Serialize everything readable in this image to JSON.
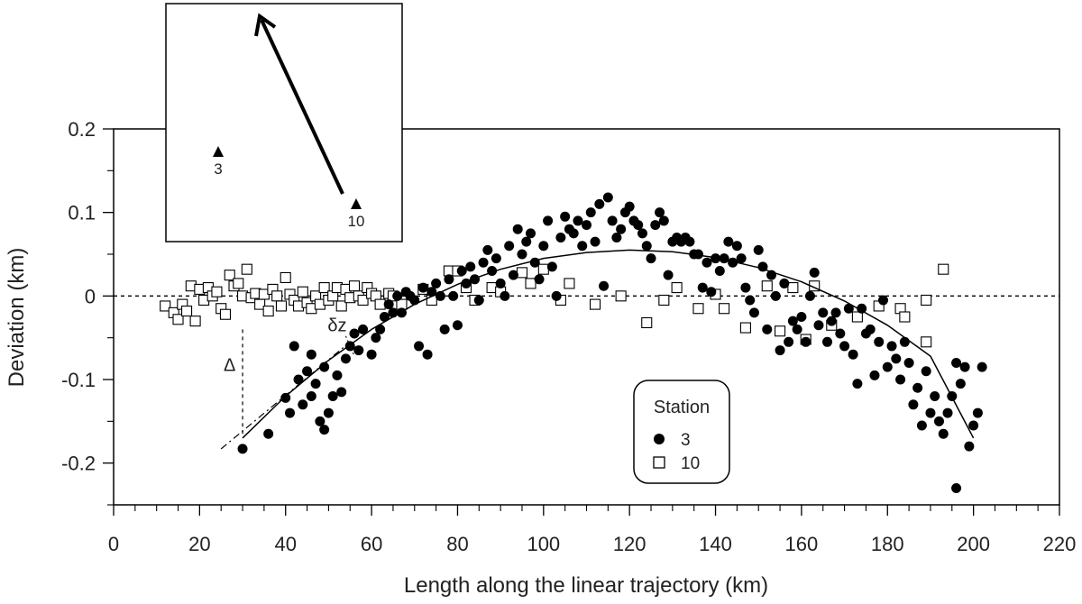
{
  "chart_data": {
    "type": "scatter",
    "xlabel": "Length along the linear trajectory (km)",
    "ylabel": "Deviation (km)",
    "xlim": [
      0,
      220
    ],
    "ylim": [
      -0.25,
      0.2
    ],
    "xticks": [
      0,
      20,
      40,
      60,
      80,
      100,
      120,
      140,
      160,
      180,
      200,
      220
    ],
    "yticks": [
      0.2,
      0.1,
      0,
      -0.1,
      -0.2
    ],
    "ytick_labels": [
      "0.2",
      "0.1",
      "0",
      "-0.1",
      "-0.2"
    ],
    "grid": false,
    "zero_line": "dashed",
    "legend": {
      "title": "Station",
      "position": "bottom-right-center"
    },
    "series": [
      {
        "name": "3",
        "marker": "filled-circle",
        "color": "#000000",
        "points": [
          [
            30,
            -0.183
          ],
          [
            36,
            -0.165
          ],
          [
            40,
            -0.122
          ],
          [
            41,
            -0.14
          ],
          [
            42,
            -0.06
          ],
          [
            43,
            -0.1
          ],
          [
            44,
            -0.13
          ],
          [
            45,
            -0.09
          ],
          [
            46,
            -0.12
          ],
          [
            46,
            -0.07
          ],
          [
            47,
            -0.105
          ],
          [
            48,
            -0.15
          ],
          [
            49,
            -0.16
          ],
          [
            49,
            -0.085
          ],
          [
            50,
            -0.14
          ],
          [
            51,
            -0.12
          ],
          [
            52,
            -0.095
          ],
          [
            53,
            -0.115
          ],
          [
            54,
            -0.075
          ],
          [
            55,
            -0.06
          ],
          [
            56,
            -0.045
          ],
          [
            57,
            -0.065
          ],
          [
            58,
            -0.04
          ],
          [
            60,
            -0.07
          ],
          [
            61,
            -0.05
          ],
          [
            62,
            -0.04
          ],
          [
            63,
            -0.025
          ],
          [
            64,
            -0.01
          ],
          [
            65,
            -0.02
          ],
          [
            66,
            0.0
          ],
          [
            67,
            -0.02
          ],
          [
            68,
            0.005
          ],
          [
            69,
            0.0
          ],
          [
            70,
            -0.005
          ],
          [
            71,
            -0.06
          ],
          [
            72,
            0.01
          ],
          [
            73,
            -0.07
          ],
          [
            74,
            0.005
          ],
          [
            75,
            0.015
          ],
          [
            76,
            0.0
          ],
          [
            77,
            -0.04
          ],
          [
            78,
            0.02
          ],
          [
            79,
            0.0
          ],
          [
            80,
            -0.035
          ],
          [
            81,
            0.03
          ],
          [
            82,
            0.015
          ],
          [
            83,
            0.035
          ],
          [
            84,
            0.02
          ],
          [
            85,
            -0.005
          ],
          [
            86,
            0.04
          ],
          [
            87,
            0.055
          ],
          [
            88,
            0.03
          ],
          [
            89,
            0.045
          ],
          [
            90,
            0.015
          ],
          [
            91,
            0.0
          ],
          [
            92,
            0.06
          ],
          [
            93,
            0.025
          ],
          [
            94,
            0.08
          ],
          [
            95,
            0.05
          ],
          [
            96,
            0.065
          ],
          [
            97,
            0.075
          ],
          [
            98,
            0.04
          ],
          [
            99,
            0.02
          ],
          [
            100,
            0.06
          ],
          [
            101,
            0.09
          ],
          [
            102,
            0.035
          ],
          [
            103,
            0.0
          ],
          [
            104,
            0.07
          ],
          [
            105,
            0.095
          ],
          [
            106,
            0.08
          ],
          [
            107,
            0.075
          ],
          [
            108,
            0.09
          ],
          [
            109,
            0.06
          ],
          [
            110,
            0.085
          ],
          [
            111,
            0.1
          ],
          [
            112,
            0.065
          ],
          [
            113,
            0.11
          ],
          [
            114,
            0.012
          ],
          [
            115,
            0.118
          ],
          [
            116,
            0.09
          ],
          [
            117,
            0.07
          ],
          [
            118,
            0.08
          ],
          [
            119,
            0.1
          ],
          [
            120,
            0.107
          ],
          [
            121,
            0.09
          ],
          [
            122,
            0.085
          ],
          [
            123,
            0.075
          ],
          [
            124,
            0.06
          ],
          [
            125,
            0.045
          ],
          [
            126,
            0.085
          ],
          [
            127,
            0.1
          ],
          [
            128,
            0.09
          ],
          [
            129,
            0.025
          ],
          [
            130,
            0.065
          ],
          [
            131,
            0.07
          ],
          [
            132,
            0.065
          ],
          [
            133,
            0.07
          ],
          [
            134,
            0.065
          ],
          [
            135,
            0.05
          ],
          [
            136,
            0.05
          ],
          [
            137,
            0.01
          ],
          [
            138,
            0.04
          ],
          [
            139,
            0.005
          ],
          [
            140,
            0.045
          ],
          [
            141,
            0.03
          ],
          [
            142,
            0.045
          ],
          [
            143,
            0.065
          ],
          [
            144,
            0.04
          ],
          [
            145,
            0.06
          ],
          [
            146,
            0.045
          ],
          [
            147,
            0.01
          ],
          [
            148,
            -0.005
          ],
          [
            149,
            -0.02
          ],
          [
            150,
            0.055
          ],
          [
            151,
            0.035
          ],
          [
            152,
            -0.04
          ],
          [
            153,
            0.025
          ],
          [
            154,
            0.0
          ],
          [
            155,
            -0.065
          ],
          [
            156,
            0.015
          ],
          [
            157,
            -0.055
          ],
          [
            158,
            -0.03
          ],
          [
            159,
            -0.04
          ],
          [
            160,
            -0.025
          ],
          [
            161,
            -0.055
          ],
          [
            162,
            0.0
          ],
          [
            163,
            0.028
          ],
          [
            164,
            -0.035
          ],
          [
            165,
            -0.02
          ],
          [
            166,
            -0.055
          ],
          [
            167,
            -0.03
          ],
          [
            168,
            -0.02
          ],
          [
            169,
            -0.045
          ],
          [
            170,
            -0.06
          ],
          [
            171,
            -0.015
          ],
          [
            172,
            -0.07
          ],
          [
            173,
            -0.105
          ],
          [
            174,
            -0.015
          ],
          [
            175,
            -0.045
          ],
          [
            176,
            -0.04
          ],
          [
            177,
            -0.095
          ],
          [
            178,
            -0.055
          ],
          [
            179,
            -0.005
          ],
          [
            180,
            -0.085
          ],
          [
            181,
            -0.06
          ],
          [
            182,
            -0.075
          ],
          [
            183,
            -0.1
          ],
          [
            184,
            -0.055
          ],
          [
            185,
            -0.08
          ],
          [
            186,
            -0.13
          ],
          [
            187,
            -0.11
          ],
          [
            188,
            -0.155
          ],
          [
            189,
            -0.09
          ],
          [
            190,
            -0.14
          ],
          [
            191,
            -0.12
          ],
          [
            192,
            -0.15
          ],
          [
            193,
            -0.165
          ],
          [
            194,
            -0.14
          ],
          [
            195,
            -0.12
          ],
          [
            196,
            -0.08
          ],
          [
            196,
            -0.23
          ],
          [
            197,
            -0.105
          ],
          [
            198,
            -0.085
          ],
          [
            199,
            -0.18
          ],
          [
            200,
            -0.155
          ],
          [
            201,
            -0.14
          ],
          [
            202,
            -0.085
          ]
        ]
      },
      {
        "name": "10",
        "marker": "open-square",
        "color": "#000000",
        "points": [
          [
            12,
            -0.012
          ],
          [
            14,
            -0.02
          ],
          [
            15,
            -0.028
          ],
          [
            16,
            -0.01
          ],
          [
            17,
            -0.018
          ],
          [
            18,
            0.012
          ],
          [
            19,
            -0.03
          ],
          [
            20,
            0.008
          ],
          [
            21,
            -0.005
          ],
          [
            22,
            0.01
          ],
          [
            23,
            0.0
          ],
          [
            24,
            0.005
          ],
          [
            25,
            -0.015
          ],
          [
            26,
            -0.022
          ],
          [
            27,
            0.025
          ],
          [
            28,
            0.012
          ],
          [
            29,
            0.015
          ],
          [
            30,
            0.0
          ],
          [
            31,
            0.032
          ],
          [
            32,
            -0.002
          ],
          [
            33,
            0.003
          ],
          [
            34,
            -0.01
          ],
          [
            35,
            0.002
          ],
          [
            36,
            -0.018
          ],
          [
            37,
            0.008
          ],
          [
            38,
            0.0
          ],
          [
            39,
            -0.012
          ],
          [
            40,
            0.022
          ],
          [
            41,
            0.002
          ],
          [
            42,
            -0.005
          ],
          [
            43,
            -0.012
          ],
          [
            44,
            0.005
          ],
          [
            45,
            -0.008
          ],
          [
            46,
            -0.015
          ],
          [
            47,
            0.0
          ],
          [
            48,
            -0.01
          ],
          [
            49,
            0.01
          ],
          [
            50,
            -0.005
          ],
          [
            51,
            0.0
          ],
          [
            52,
            0.01
          ],
          [
            53,
            -0.012
          ],
          [
            54,
            0.008
          ],
          [
            55,
            -0.002
          ],
          [
            56,
            0.012
          ],
          [
            57,
            0.0
          ],
          [
            58,
            -0.005
          ],
          [
            59,
            0.01
          ],
          [
            60,
            0.003
          ],
          [
            61,
            0.0
          ],
          [
            62,
            -0.01
          ],
          [
            64,
            0.003
          ],
          [
            65,
            0.0
          ],
          [
            67,
            -0.01
          ],
          [
            72,
            0.008
          ],
          [
            74,
            -0.005
          ],
          [
            78,
            0.03
          ],
          [
            80,
            0.03
          ],
          [
            82,
            0.01
          ],
          [
            84,
            -0.005
          ],
          [
            88,
            0.01
          ],
          [
            90,
            0.005
          ],
          [
            95,
            0.028
          ],
          [
            97,
            0.015
          ],
          [
            100,
            0.032
          ],
          [
            104,
            -0.005
          ],
          [
            106,
            0.015
          ],
          [
            112,
            -0.01
          ],
          [
            118,
            0.0
          ],
          [
            124,
            -0.032
          ],
          [
            128,
            -0.005
          ],
          [
            131,
            0.01
          ],
          [
            136,
            -0.015
          ],
          [
            140,
            0.002
          ],
          [
            142,
            -0.015
          ],
          [
            147,
            -0.038
          ],
          [
            152,
            0.012
          ],
          [
            155,
            -0.042
          ],
          [
            158,
            0.01
          ],
          [
            161,
            -0.052
          ],
          [
            163,
            0.012
          ],
          [
            167,
            -0.035
          ],
          [
            173,
            -0.025
          ],
          [
            178,
            -0.012
          ],
          [
            183,
            -0.015
          ],
          [
            184,
            -0.025
          ],
          [
            189,
            -0.005
          ],
          [
            189,
            -0.055
          ],
          [
            193,
            0.032
          ]
        ]
      }
    ],
    "fit_curve": {
      "style": "solid",
      "points": [
        [
          30,
          -0.17
        ],
        [
          40,
          -0.12
        ],
        [
          50,
          -0.077
        ],
        [
          60,
          -0.04
        ],
        [
          70,
          -0.01
        ],
        [
          80,
          0.014
        ],
        [
          90,
          0.032
        ],
        [
          100,
          0.045
        ],
        [
          110,
          0.052
        ],
        [
          120,
          0.055
        ],
        [
          130,
          0.053
        ],
        [
          140,
          0.046
        ],
        [
          150,
          0.034
        ],
        [
          160,
          0.017
        ],
        [
          170,
          -0.006
        ],
        [
          180,
          -0.035
        ],
        [
          190,
          -0.072
        ],
        [
          200,
          -0.17
        ]
      ]
    },
    "tangent_line": {
      "style": "dash-dot",
      "points": [
        [
          25,
          -0.183
        ],
        [
          55,
          -0.055
        ]
      ]
    },
    "annotations": [
      {
        "text": "Δ",
        "x": 27,
        "y": -0.09
      },
      {
        "text": "δz",
        "x": 52,
        "y": -0.042
      }
    ],
    "delta_marker": {
      "x": 30,
      "y_top": -0.04,
      "y_bottom": -0.165,
      "style": "dashed"
    },
    "inset": {
      "stations": [
        {
          "label": "3"
        },
        {
          "label": "10"
        }
      ],
      "arrow": "from station 10 toward upper left"
    }
  }
}
